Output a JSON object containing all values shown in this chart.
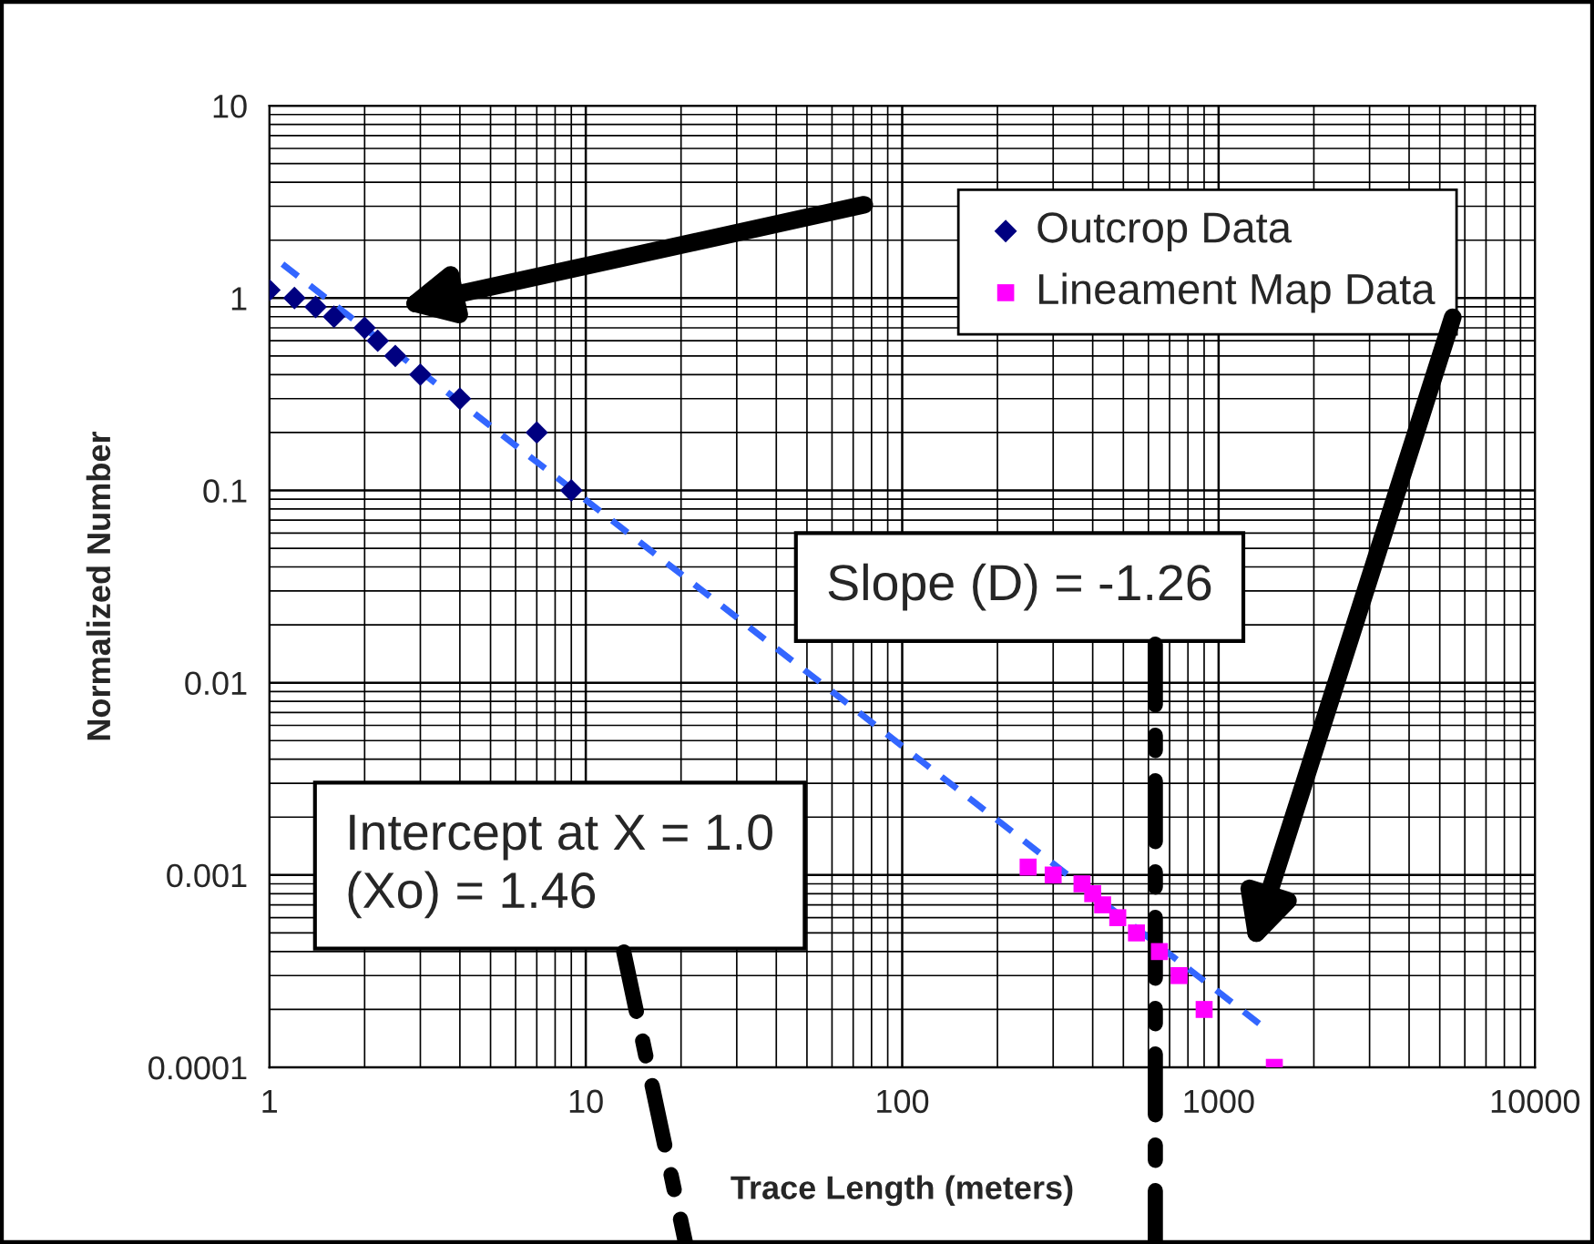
{
  "chart_data": {
    "type": "scatter",
    "xlabel": "Trace Length (meters)",
    "ylabel": "Normalized Number",
    "log": "xy",
    "xlim": [
      1,
      10000
    ],
    "ylim": [
      0.0001,
      10
    ],
    "xticks": [
      1,
      10,
      100,
      1000,
      10000
    ],
    "yticks": [
      0.0001,
      0.001,
      0.01,
      0.1,
      1,
      10
    ],
    "grid": true,
    "legend": "top right",
    "series": [
      {
        "name": "Outcrop Data",
        "marker": "diamond",
        "color": "#000080",
        "x": [
          1,
          1.2,
          1.4,
          1.6,
          2,
          2.2,
          2.5,
          3,
          4,
          7,
          9
        ],
        "values": [
          1.1,
          1.0,
          0.9,
          0.8,
          0.7,
          0.6,
          0.5,
          0.4,
          0.3,
          0.2,
          0.1
        ]
      },
      {
        "name": "Lineament Map Data",
        "marker": "square",
        "color": "#ff00ff",
        "x": [
          250,
          300,
          370,
          400,
          430,
          480,
          550,
          650,
          750,
          900,
          1500
        ],
        "values": [
          0.0011,
          0.001,
          0.0009,
          0.0008,
          0.0007,
          0.0006,
          0.0005,
          0.0004,
          0.0003,
          0.0002,
          0.0001
        ]
      },
      {
        "type": "line",
        "marker": "none",
        "line_style": "dashed",
        "color": "#3366ff",
        "x": [
          1.1,
          1400
        ],
        "values": [
          1.5,
          0.00016
        ]
      }
    ],
    "annotations": [
      "Slope (D) = -1.26",
      "Intercept at X = 1.0\n(Xo) = 1.46"
    ]
  }
}
